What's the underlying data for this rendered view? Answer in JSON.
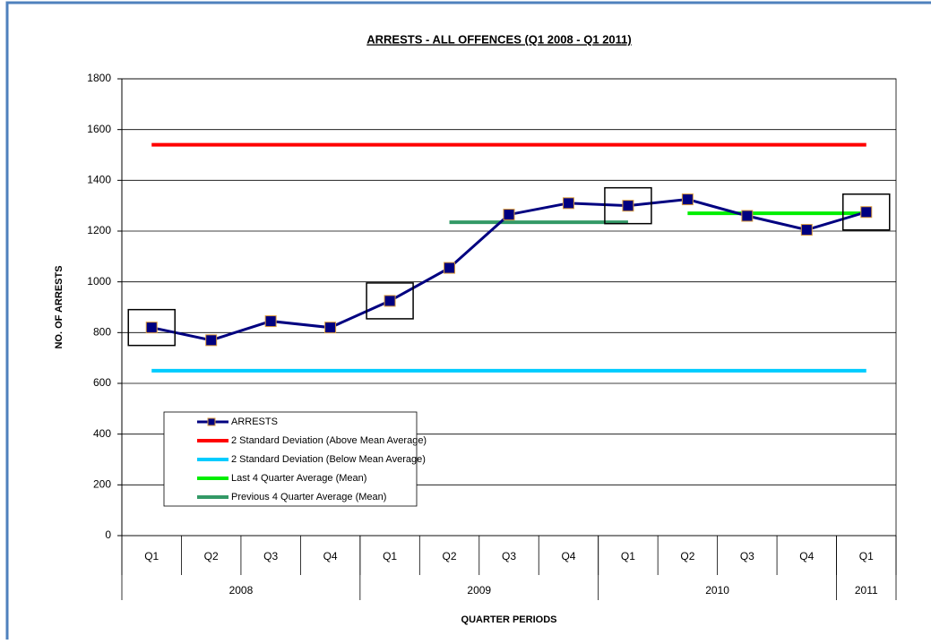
{
  "chart_data": {
    "type": "line",
    "title": "ARRESTS - ALL OFFENCES (Q1 2008 - Q1 2011)",
    "y_label": "NO. OF ARRESTS",
    "x_label": "QUARTER PERIODS",
    "categories": [
      "Q1",
      "Q2",
      "Q3",
      "Q4",
      "Q1",
      "Q2",
      "Q3",
      "Q4",
      "Q1",
      "Q2",
      "Q3",
      "Q4",
      "Q1"
    ],
    "groups": [
      {
        "label": "2008",
        "count": 4
      },
      {
        "label": "2009",
        "count": 4
      },
      {
        "label": "2010",
        "count": 4
      },
      {
        "label": "2011",
        "count": 1
      }
    ],
    "series": [
      {
        "name": "ARRESTS",
        "color": "#000080",
        "marker": true,
        "values": [
          820,
          770,
          845,
          820,
          925,
          1055,
          1265,
          1310,
          1300,
          1325,
          1260,
          1205,
          1275
        ]
      },
      {
        "name": "2 Standard Deviation (Above Mean Average)",
        "color": "#ff0000",
        "values": [
          1540,
          1540,
          1540,
          1540,
          1540,
          1540,
          1540,
          1540,
          1540,
          1540,
          1540,
          1540,
          1540
        ]
      },
      {
        "name": "2 Standard Deviation (Below Mean Average)",
        "color": "#00ccff",
        "values": [
          650,
          650,
          650,
          650,
          650,
          650,
          650,
          650,
          650,
          650,
          650,
          650,
          650
        ]
      },
      {
        "name": "Last 4 Quarter Average (Mean)",
        "color": "#00ee00",
        "values": [
          null,
          null,
          null,
          null,
          null,
          null,
          null,
          null,
          null,
          1270,
          1270,
          1270,
          1270
        ]
      },
      {
        "name": "Previous 4 Quarter Average (Mean)",
        "color": "#339966",
        "values": [
          null,
          null,
          null,
          null,
          null,
          1235,
          1235,
          1235,
          1235,
          null,
          null,
          null,
          null
        ]
      }
    ],
    "ylim": [
      0,
      1800
    ],
    "yticks": [
      0,
      200,
      400,
      600,
      800,
      1000,
      1200,
      1400,
      1600,
      1800
    ],
    "grid": true
  }
}
